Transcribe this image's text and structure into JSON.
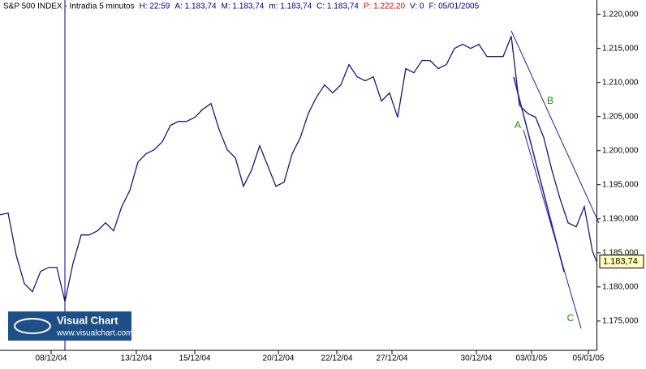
{
  "chart_data": {
    "type": "line",
    "header": [
      {
        "text": "S&P 500 INDEX - Intradía 5 minutos",
        "color": "#000000"
      },
      {
        "text": "H: 22:59",
        "color": "#000080"
      },
      {
        "text": "A: 1.183,74",
        "color": "#000080"
      },
      {
        "text": "M: 1.183,74",
        "color": "#000080"
      },
      {
        "text": "m: 1.183,74",
        "color": "#000080"
      },
      {
        "text": "C: 1.183,74",
        "color": "#000080"
      },
      {
        "text": "P: 1.222,20",
        "color": "#d00000"
      },
      {
        "text": "V: 0",
        "color": "#000080"
      },
      {
        "text": "F: 05/01/2005",
        "color": "#000080"
      }
    ],
    "x": [
      0,
      10,
      20,
      30,
      40,
      50,
      60,
      70,
      80,
      90,
      100,
      110,
      120,
      130,
      140,
      150,
      160,
      170,
      180,
      190,
      200,
      210,
      220,
      230,
      240,
      250,
      260,
      270,
      280,
      290,
      300,
      310,
      320,
      330,
      340,
      350,
      360,
      370,
      380,
      390,
      400,
      410,
      420,
      430,
      440,
      450,
      460,
      470,
      480,
      490,
      500,
      510,
      520,
      530,
      540,
      550,
      560,
      570,
      580,
      590,
      600,
      610,
      620,
      630,
      640,
      650,
      660,
      670,
      680,
      690,
      700,
      710,
      720,
      730,
      735
    ],
    "series": [
      {
        "color": "#1a1a6e",
        "values": [
          1190.6,
          1190.84,
          1184.66,
          1180.49,
          1179.3,
          1182.28,
          1182.87,
          1182.87,
          1177.87,
          1183.47,
          1187.63,
          1187.63,
          1188.23,
          1189.42,
          1188.23,
          1191.79,
          1194.17,
          1198.34,
          1199.53,
          1200.13,
          1201.31,
          1203.7,
          1204.29,
          1204.29,
          1204.89,
          1206.08,
          1206.91,
          1203.1,
          1200.13,
          1198.94,
          1194.77,
          1197.15,
          1200.72,
          1197.75,
          1194.77,
          1195.37,
          1199.53,
          1201.91,
          1205.48,
          1207.86,
          1209.65,
          1208.46,
          1209.65,
          1212.62,
          1210.84,
          1210.24,
          1210.84,
          1207.27,
          1208.46,
          1204.89,
          1212.03,
          1211.43,
          1213.22,
          1213.22,
          1212.03,
          1212.62,
          1215.0,
          1215.6,
          1215.0,
          1215.6,
          1213.81,
          1213.81,
          1213.81,
          1216.79,
          1206.67,
          1205.48,
          1204.89,
          1201.91,
          1197.15,
          1192.98,
          1189.41,
          1188.82,
          1191.79,
          1185.25,
          1183.74
        ]
      }
    ],
    "xlim": [
      0,
      735
    ],
    "xticks": [
      {
        "value": 63,
        "label": "08/12/04"
      },
      {
        "value": 168,
        "label": "13/12/04"
      },
      {
        "value": 240,
        "label": "15/12/04"
      },
      {
        "value": 343,
        "label": "20/12/04"
      },
      {
        "value": 415,
        "label": "22/12/04"
      },
      {
        "value": 483,
        "label": "27/12/04"
      },
      {
        "value": 587,
        "label": "30/12/04"
      },
      {
        "value": 655,
        "label": "03/01/05"
      },
      {
        "value": 725,
        "label": "05/01/05"
      }
    ],
    "ylim": [
      1170.7,
      1222.1
    ],
    "yticks": [
      {
        "value": 1175,
        "label": "1.175,000"
      },
      {
        "value": 1180,
        "label": "1.180,000"
      },
      {
        "value": 1185,
        "label": "1.185,000"
      },
      {
        "value": 1190,
        "label": "1.190,000"
      },
      {
        "value": 1195,
        "label": "1.195,000"
      },
      {
        "value": 1200,
        "label": "1.200,000"
      },
      {
        "value": 1205,
        "label": "1.205,000"
      },
      {
        "value": 1210,
        "label": "1.210,000"
      },
      {
        "value": 1215,
        "label": "1.215,000"
      },
      {
        "value": 1220,
        "label": "1.220,000"
      }
    ],
    "last": {
      "value": 1183.74,
      "label": "1.183,74"
    },
    "annotations": [
      "A",
      "B",
      "C"
    ],
    "logo": {
      "title": "Visual Chart",
      "url": "www.visualchart.com"
    }
  }
}
